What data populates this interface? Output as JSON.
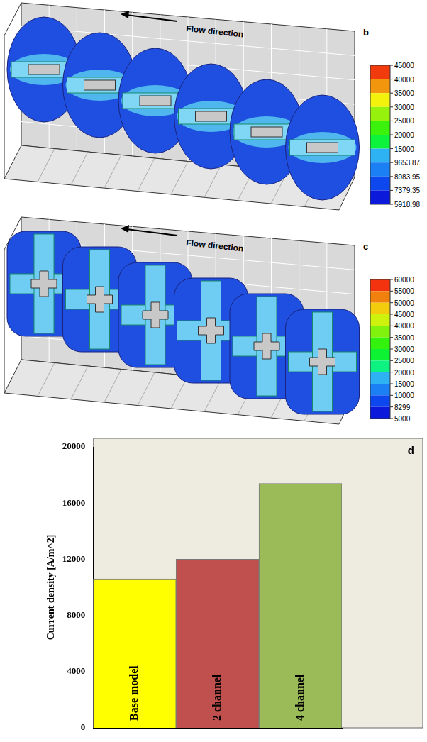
{
  "panels": [
    {
      "letter": "b",
      "annotation": "Flow direction",
      "colorbar": {
        "ticks": [
          45000,
          40000,
          35000,
          30000,
          25000,
          20000,
          15000,
          9653.87,
          8983.95,
          7379.35,
          5918.98
        ]
      }
    },
    {
      "letter": "c",
      "annotation": "Flow direction",
      "colorbar": {
        "ticks": [
          60000,
          55000,
          50000,
          45000,
          40000,
          35000,
          30000,
          25000,
          20000,
          15000,
          10000,
          8299,
          5000
        ]
      }
    }
  ],
  "chart_data": {
    "type": "bar",
    "annotations": [
      "d"
    ],
    "y_label": "Current density [A/m^2]",
    "categories": [
      "Base model",
      "2 channel",
      "4 channel"
    ],
    "values": [
      10600,
      12000,
      17400
    ],
    "colors": [
      "#ffff00",
      "#c0504d",
      "#9bbb59"
    ],
    "ylim": [
      0,
      20000
    ],
    "yticks": [
      0,
      4000,
      8000,
      12000,
      16000,
      20000
    ],
    "grid": false,
    "tick_labels": "y"
  }
}
